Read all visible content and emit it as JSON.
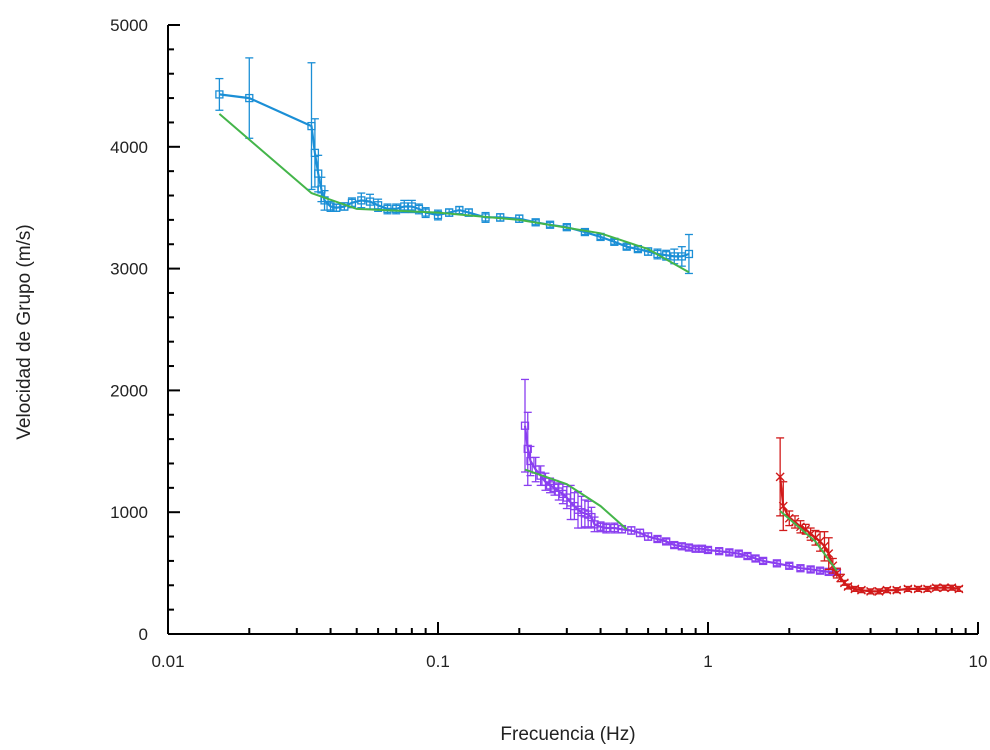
{
  "chart_data": {
    "type": "line",
    "title": "",
    "xlabel": "Frecuencia (Hz)",
    "ylabel": "Velocidad de Grupo (m/s)",
    "xscale": "log",
    "xlim": [
      0.01,
      10
    ],
    "ylim": [
      0,
      5000
    ],
    "x_ticks": [
      {
        "value": 0.01,
        "label": "0.01"
      },
      {
        "value": 0.1,
        "label": "0.1"
      },
      {
        "value": 1,
        "label": "1"
      },
      {
        "value": 10,
        "label": "10"
      }
    ],
    "y_ticks": [
      {
        "value": 0,
        "label": "0"
      },
      {
        "value": 1000,
        "label": "1000"
      },
      {
        "value": 2000,
        "label": "2000"
      },
      {
        "value": 3000,
        "label": "3000"
      },
      {
        "value": 4000,
        "label": "4000"
      },
      {
        "value": 5000,
        "label": "5000"
      }
    ],
    "grid": false,
    "legend": "none",
    "series": [
      {
        "color": "#1b8fd6",
        "marker": "square",
        "x": [
          0.0155,
          0.02,
          0.034,
          0.035,
          0.036,
          0.037,
          0.038,
          0.04,
          0.042,
          0.045,
          0.048,
          0.052,
          0.056,
          0.06,
          0.065,
          0.07,
          0.075,
          0.08,
          0.085,
          0.09,
          0.1,
          0.11,
          0.12,
          0.13,
          0.15,
          0.17,
          0.2,
          0.23,
          0.26,
          0.3,
          0.35,
          0.4,
          0.45,
          0.5,
          0.55,
          0.6,
          0.65,
          0.7,
          0.75,
          0.8,
          0.85
        ],
        "y": [
          4430,
          4400,
          4170,
          3950,
          3780,
          3650,
          3560,
          3510,
          3500,
          3510,
          3540,
          3560,
          3550,
          3520,
          3490,
          3490,
          3510,
          3510,
          3490,
          3460,
          3440,
          3460,
          3480,
          3460,
          3420,
          3420,
          3410,
          3380,
          3360,
          3340,
          3300,
          3260,
          3220,
          3180,
          3160,
          3140,
          3120,
          3110,
          3100,
          3100,
          3120
        ],
        "err": [
          130,
          330,
          520,
          280,
          150,
          100,
          80,
          40,
          30,
          30,
          40,
          60,
          60,
          50,
          40,
          40,
          50,
          50,
          40,
          40,
          40,
          30,
          30,
          30,
          40,
          30,
          30,
          20,
          20,
          20,
          20,
          20,
          20,
          20,
          20,
          30,
          40,
          40,
          60,
          80,
          160
        ]
      },
      {
        "color": "#8a3ff0",
        "marker": "square",
        "x": [
          0.21,
          0.215,
          0.22,
          0.23,
          0.24,
          0.25,
          0.26,
          0.27,
          0.28,
          0.29,
          0.3,
          0.31,
          0.32,
          0.33,
          0.34,
          0.35,
          0.36,
          0.37,
          0.38,
          0.4,
          0.42,
          0.45,
          0.48,
          0.52,
          0.56,
          0.6,
          0.65,
          0.7,
          0.75,
          0.8,
          0.85,
          0.9,
          0.95,
          1.0,
          1.1,
          1.2,
          1.3,
          1.4,
          1.5,
          1.6,
          1.8,
          2.0,
          2.2,
          2.4,
          2.6,
          2.8,
          3.0
        ],
        "y": [
          1710,
          1520,
          1420,
          1350,
          1300,
          1250,
          1220,
          1200,
          1170,
          1150,
          1120,
          1080,
          1050,
          1020,
          1000,
          990,
          980,
          960,
          900,
          880,
          870,
          870,
          860,
          850,
          830,
          800,
          780,
          760,
          730,
          720,
          710,
          700,
          700,
          690,
          680,
          670,
          660,
          640,
          620,
          600,
          580,
          560,
          540,
          530,
          520,
          510,
          510
        ],
        "err": [
          380,
          300,
          120,
          100,
          80,
          70,
          60,
          60,
          70,
          80,
          90,
          140,
          110,
          150,
          130,
          110,
          110,
          80,
          60,
          40,
          40,
          40,
          30,
          30,
          30,
          30,
          20,
          20,
          20,
          20,
          20,
          20,
          20,
          20,
          20,
          20,
          20,
          20,
          20,
          20,
          20,
          20,
          20,
          20,
          20,
          20,
          20
        ]
      },
      {
        "color": "#d11a1a",
        "marker": "x",
        "x": [
          1.85,
          1.9,
          2.0,
          2.1,
          2.2,
          2.3,
          2.4,
          2.5,
          2.6,
          2.7,
          2.8,
          2.9,
          3.0,
          3.1,
          3.2,
          3.3,
          3.5,
          3.7,
          4.0,
          4.3,
          4.6,
          5.0,
          5.5,
          6.0,
          6.5,
          7.0,
          7.5,
          8.0,
          8.5
        ],
        "y": [
          1290,
          1050,
          950,
          920,
          880,
          860,
          820,
          790,
          760,
          720,
          660,
          560,
          500,
          460,
          420,
          390,
          370,
          360,
          350,
          350,
          360,
          360,
          370,
          370,
          370,
          380,
          380,
          380,
          370
        ],
        "err": [
          320,
          200,
          60,
          50,
          50,
          40,
          50,
          60,
          80,
          120,
          130,
          60,
          40,
          30,
          20,
          20,
          20,
          20,
          20,
          20,
          20,
          20,
          20,
          20,
          20,
          20,
          20,
          20,
          20
        ]
      },
      {
        "color": "#44b54a",
        "marker": "none",
        "x": [
          0.0155,
          0.034,
          0.05,
          0.1,
          0.2,
          0.4,
          0.6,
          0.85
        ],
        "y": [
          4270,
          3620,
          3490,
          3460,
          3400,
          3290,
          3160,
          2970
        ]
      },
      {
        "color": "#44b54a",
        "marker": "none",
        "x": [
          0.21,
          0.3,
          0.4,
          0.5
        ],
        "y": [
          1350,
          1230,
          1050,
          860
        ]
      },
      {
        "color": "#44b54a",
        "marker": "none",
        "x": [
          1.85,
          2.5,
          3.0
        ],
        "y": [
          1010,
          760,
          520
        ]
      }
    ]
  }
}
